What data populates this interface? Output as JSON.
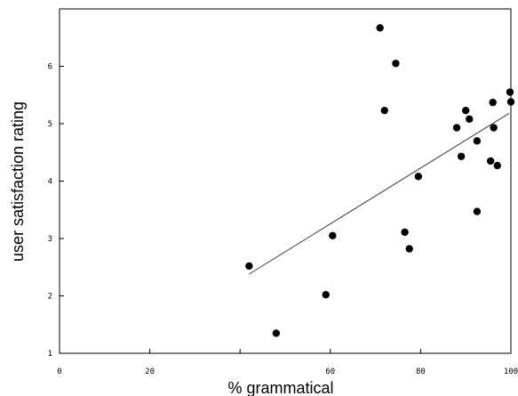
{
  "chart_data": {
    "type": "scatter",
    "title": "",
    "xlabel": "% grammatical",
    "ylabel": "user  satisfaction rating",
    "xlim": [
      0,
      100
    ],
    "ylim": [
      1,
      7
    ],
    "xticks": [
      0,
      20,
      40,
      60,
      80,
      100
    ],
    "xtick_labels": [
      "0",
      "20",
      "",
      "60",
      "80",
      "100"
    ],
    "yticks": [
      1,
      2,
      3,
      4,
      5,
      6
    ],
    "ytick_labels": [
      "1",
      "2",
      "3",
      "4",
      "5",
      "6"
    ],
    "grid": false,
    "legend": "none",
    "point_color": "#000000",
    "line_color": "#404040",
    "points": [
      {
        "x": 42,
        "y": 2.52
      },
      {
        "x": 48,
        "y": 1.35
      },
      {
        "x": 59,
        "y": 2.02
      },
      {
        "x": 60.5,
        "y": 3.05
      },
      {
        "x": 71,
        "y": 6.67
      },
      {
        "x": 72,
        "y": 5.23
      },
      {
        "x": 74.5,
        "y": 6.05
      },
      {
        "x": 76.5,
        "y": 3.11
      },
      {
        "x": 77.5,
        "y": 2.82
      },
      {
        "x": 79.5,
        "y": 4.08
      },
      {
        "x": 88,
        "y": 4.93
      },
      {
        "x": 89,
        "y": 4.43
      },
      {
        "x": 90,
        "y": 5.23
      },
      {
        "x": 90.8,
        "y": 5.08
      },
      {
        "x": 92.5,
        "y": 3.47
      },
      {
        "x": 92.5,
        "y": 4.7
      },
      {
        "x": 95.5,
        "y": 4.35
      },
      {
        "x": 96,
        "y": 5.37
      },
      {
        "x": 96.2,
        "y": 4.93
      },
      {
        "x": 97,
        "y": 4.27
      },
      {
        "x": 99.8,
        "y": 5.55
      },
      {
        "x": 100,
        "y": 5.38
      }
    ],
    "trendline": {
      "x": [
        42,
        99.6
      ],
      "y": [
        2.38,
        5.18
      ]
    }
  }
}
